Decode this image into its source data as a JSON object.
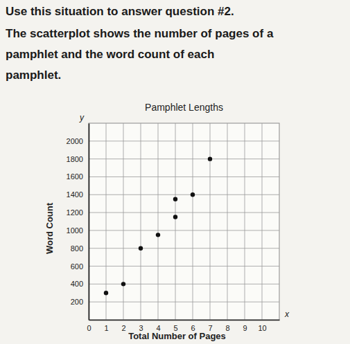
{
  "header": {
    "instruction": "Use this situation to answer question #2.",
    "situation_lines": [
      "The scatterplot shows the number of pages of a",
      "pamphlet and the word count of each",
      "pamphlet."
    ]
  },
  "chart_data": {
    "type": "scatter",
    "title": "Pamphlet Lengths",
    "x_label": "Total Number of Pages",
    "y_label": "Word Count",
    "axis_symbols": {
      "x": "x",
      "y": "y"
    },
    "x": [
      1,
      2,
      3,
      4,
      5,
      5,
      6,
      7
    ],
    "values": [
      300,
      400,
      800,
      950,
      1150,
      1350,
      1400,
      1800
    ],
    "color": "#111111",
    "marker": "circle",
    "grid": true,
    "xlim": [
      0,
      11
    ],
    "xticks": [
      0,
      1,
      2,
      3,
      4,
      5,
      6,
      7,
      8,
      9,
      10
    ],
    "ylim": [
      0,
      2200
    ],
    "yticks": [
      200,
      400,
      600,
      800,
      1000,
      1200,
      1400,
      1600,
      1800,
      2000
    ]
  }
}
